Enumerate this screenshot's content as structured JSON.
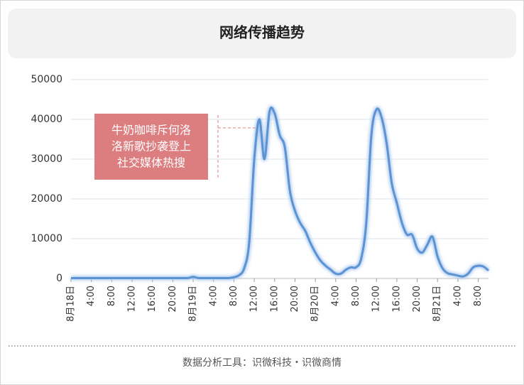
{
  "title": "网络传播趋势",
  "chart_data": {
    "type": "line",
    "categories": [
      "8月18日",
      null,
      null,
      null,
      "4:00",
      null,
      null,
      null,
      "8:00",
      null,
      null,
      null,
      "12:00",
      null,
      null,
      null,
      "16:00",
      null,
      null,
      null,
      "20:00",
      null,
      null,
      null,
      "8月19日",
      null,
      null,
      null,
      "4:00",
      null,
      null,
      null,
      "8:00",
      null,
      null,
      null,
      "12:00",
      null,
      null,
      null,
      "16:00",
      null,
      null,
      null,
      "20:00",
      null,
      null,
      null,
      "8月20日",
      null,
      null,
      null,
      "4:00",
      null,
      null,
      null,
      "8:00",
      null,
      null,
      null,
      "12:00",
      null,
      null,
      null,
      "16:00",
      null,
      null,
      null,
      "20:00",
      null,
      null,
      null,
      "8月21日",
      null,
      null,
      null,
      "4:00",
      null,
      null,
      null,
      "8:00",
      null,
      null
    ],
    "values": [
      100,
      100,
      100,
      100,
      100,
      100,
      100,
      100,
      100,
      100,
      100,
      100,
      100,
      100,
      100,
      100,
      100,
      100,
      100,
      100,
      100,
      100,
      100,
      100,
      400,
      100,
      100,
      100,
      100,
      100,
      100,
      100,
      300,
      800,
      2500,
      9000,
      30000,
      40000,
      30000,
      42000,
      41500,
      36000,
      33000,
      22000,
      17000,
      14000,
      12000,
      9000,
      6500,
      4500,
      3200,
      2200,
      1200,
      1200,
      2200,
      2800,
      2800,
      5000,
      14000,
      36000,
      42500,
      40500,
      34000,
      24000,
      19000,
      14000,
      11000,
      11000,
      7500,
      6500,
      8500,
      10500,
      5500,
      2500,
      1300,
      1000,
      700,
      500,
      1200,
      2800,
      3200,
      3000,
      2000
    ],
    "color": "#5b93d3",
    "ylim": [
      0,
      50000
    ],
    "yticks": [
      0,
      10000,
      20000,
      30000,
      40000,
      50000
    ],
    "grid": true,
    "annotation": {
      "lines": [
        "牛奶咖啡斥何洛",
        "洛新歌抄袭登上",
        "社交媒体热搜"
      ],
      "color": "#dc7d80"
    }
  },
  "footer": "数据分析工具：识微科技・识微商情"
}
